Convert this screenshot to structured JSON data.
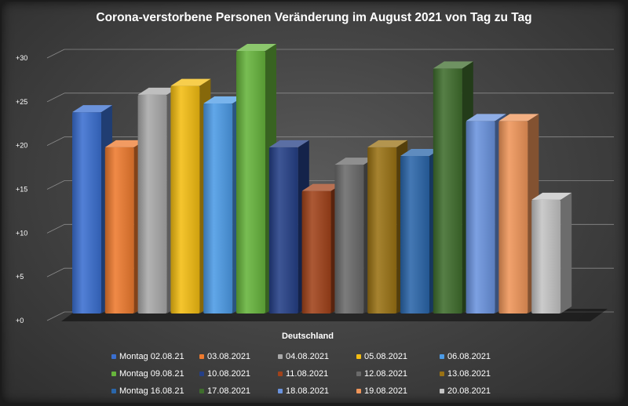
{
  "chart_data": {
    "type": "bar",
    "title": "Corona-verstorbene Personen Veränderung  im August 2021 von Tag zu Tag",
    "xlabel": "Deutschland",
    "ylabel": "",
    "categories": [
      "Deutschland"
    ],
    "ylim": [
      0,
      30
    ],
    "yticks": [
      "+0",
      "+5",
      "+10",
      "+15",
      "+20",
      "+25",
      "+30"
    ],
    "grid": true,
    "legend_position": "bottom",
    "series": [
      {
        "name": "Montag 02.08.21",
        "values": [
          23
        ],
        "color": "#3a6fd0"
      },
      {
        "name": "03.08.2021",
        "values": [
          19
        ],
        "color": "#ee7a2e"
      },
      {
        "name": "04.08.2021",
        "values": [
          25
        ],
        "color": "#a9a9a9"
      },
      {
        "name": "05.08.2021",
        "values": [
          26
        ],
        "color": "#f4bd12"
      },
      {
        "name": "06.08.2021",
        "values": [
          24
        ],
        "color": "#4c9be6"
      },
      {
        "name": "Montag 09.08.21",
        "values": [
          30
        ],
        "color": "#66b43c"
      },
      {
        "name": "10.08.2021",
        "values": [
          19
        ],
        "color": "#243f86"
      },
      {
        "name": "11.08.2021",
        "values": [
          14
        ],
        "color": "#a1421a"
      },
      {
        "name": "12.08.2021",
        "values": [
          17
        ],
        "color": "#6a6a6a"
      },
      {
        "name": "13.08.2021",
        "values": [
          19
        ],
        "color": "#9a7214"
      },
      {
        "name": "Montag 16.08.21",
        "values": [
          18
        ],
        "color": "#2a66aa"
      },
      {
        "name": "17.08.2021",
        "values": [
          28
        ],
        "color": "#3f6d2d"
      },
      {
        "name": "18.08.2021",
        "values": [
          22
        ],
        "color": "#6a93de"
      },
      {
        "name": "19.08.2021",
        "values": [
          22
        ],
        "color": "#ef9559"
      },
      {
        "name": "20.08.2021",
        "values": [
          13
        ],
        "color": "#c4c4c4"
      }
    ]
  }
}
